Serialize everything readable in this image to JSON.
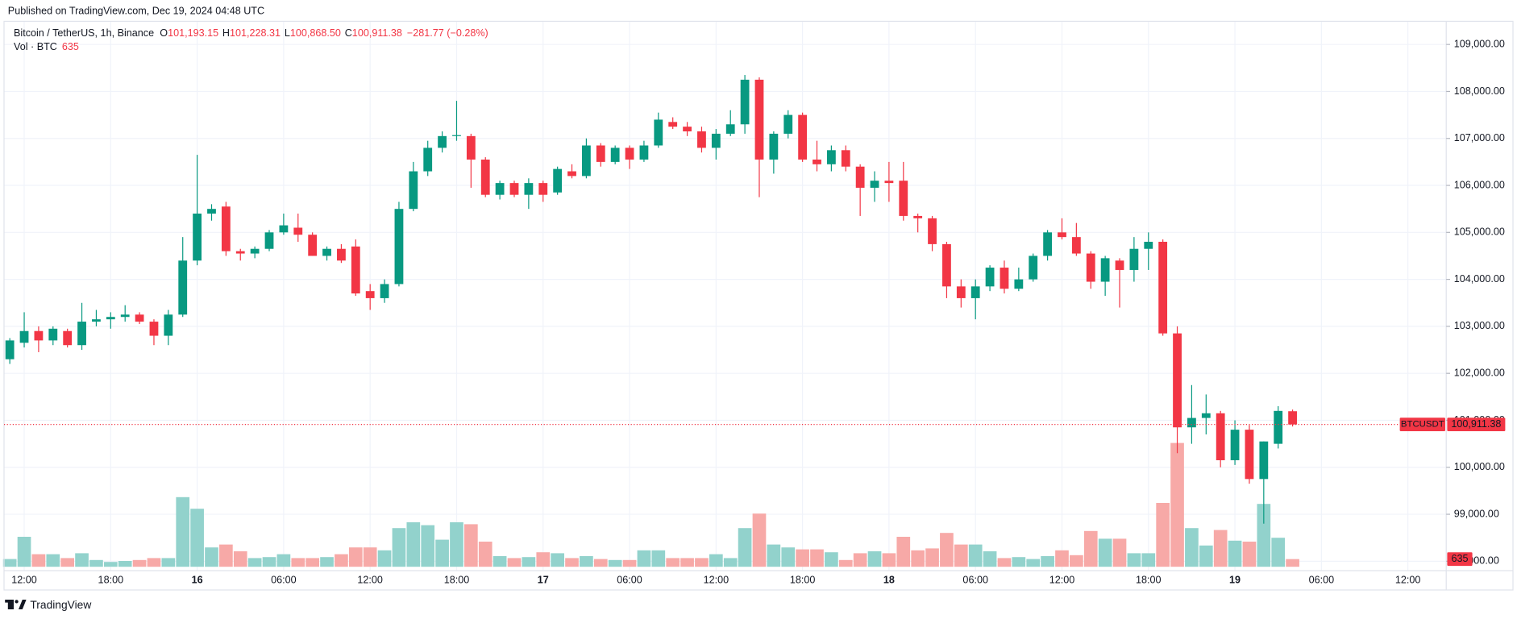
{
  "chart_data": {
    "type": "candlestick",
    "published": "Published on TradingView.com, Dec 19, 2024 04:48 UTC",
    "legend": {
      "symbol": "Bitcoin / TetherUS, 1h, Binance",
      "fields": [
        {
          "key": "O",
          "value": "101,193.15"
        },
        {
          "key": "H",
          "value": "101,228.31"
        },
        {
          "key": "L",
          "value": "100,868.50"
        },
        {
          "key": "C",
          "value": "100,911.38"
        }
      ],
      "change": "−281.77 (−0.28%)",
      "volume_name": "Vol · BTC"
    },
    "price_line": {
      "name": "BTCUSDT",
      "label": "100,911.38"
    },
    "footer": "TradingView",
    "up_color": "#089981",
    "down_color": "#f23645",
    "volume_up_color": "#92d2cc",
    "volume_down_color": "#f7a9a7",
    "grid": true,
    "xlim": [
      -0.4,
      99.66
    ],
    "xticks": [
      {
        "value": 1,
        "label": "12:00"
      },
      {
        "value": 7,
        "label": "18:00"
      },
      {
        "value": 13,
        "label": "16"
      },
      {
        "value": 19,
        "label": "06:00"
      },
      {
        "value": 25,
        "label": "12:00"
      },
      {
        "value": 31,
        "label": "18:00"
      },
      {
        "value": 37,
        "label": "17"
      },
      {
        "value": 43,
        "label": "06:00"
      },
      {
        "value": 49,
        "label": "12:00"
      },
      {
        "value": 55,
        "label": "18:00"
      },
      {
        "value": 61,
        "label": "18"
      },
      {
        "value": 67,
        "label": "06:00"
      },
      {
        "value": 73,
        "label": "12:00"
      },
      {
        "value": 79,
        "label": "18:00"
      },
      {
        "value": 85,
        "label": "19"
      },
      {
        "value": 91,
        "label": "06:00"
      },
      {
        "value": 97,
        "label": "12:00"
      }
    ],
    "ylim": [
      97800,
      109370
    ],
    "yticks": [
      {
        "value": 98000,
        "label": "98,000.00"
      },
      {
        "value": 99000,
        "label": "99,000.00"
      },
      {
        "value": 100000,
        "label": "100,000.00"
      },
      {
        "value": 101000,
        "label": "101,000.00"
      },
      {
        "value": 102000,
        "label": "102,000.00"
      },
      {
        "value": 103000,
        "label": "103,000.00"
      },
      {
        "value": 104000,
        "label": "104,000.00"
      },
      {
        "value": 105000,
        "label": "105,000.00"
      },
      {
        "value": 106000,
        "label": "106,000.00"
      },
      {
        "value": 107000,
        "label": "107,000.00"
      },
      {
        "value": 108000,
        "label": "108,000.00"
      },
      {
        "value": 109000,
        "label": "109,000.00"
      }
    ],
    "volume_ylim": [
      0,
      12000
    ],
    "candles": [
      {
        "open": 102300,
        "high": 102750,
        "low": 102200,
        "close": 102700
      },
      {
        "open": 102650,
        "high": 103300,
        "low": 102550,
        "close": 102900
      },
      {
        "open": 102900,
        "high": 103000,
        "low": 102450,
        "close": 102700
      },
      {
        "open": 102700,
        "high": 103000,
        "low": 102600,
        "close": 102950
      },
      {
        "open": 102900,
        "high": 102950,
        "low": 102550,
        "close": 102600
      },
      {
        "open": 102600,
        "high": 103500,
        "low": 102500,
        "close": 103100
      },
      {
        "open": 103100,
        "high": 103350,
        "low": 103000,
        "close": 103150
      },
      {
        "open": 103150,
        "high": 103300,
        "low": 102950,
        "close": 103200
      },
      {
        "open": 103200,
        "high": 103450,
        "low": 103100,
        "close": 103250
      },
      {
        "open": 103250,
        "high": 103300,
        "low": 103050,
        "close": 103100
      },
      {
        "open": 103100,
        "high": 103150,
        "low": 102600,
        "close": 102800
      },
      {
        "open": 102800,
        "high": 103350,
        "low": 102600,
        "close": 103250
      },
      {
        "open": 103250,
        "high": 104900,
        "low": 103200,
        "close": 104400
      },
      {
        "open": 104400,
        "high": 106650,
        "low": 104300,
        "close": 105400
      },
      {
        "open": 105400,
        "high": 105600,
        "low": 105250,
        "close": 105500
      },
      {
        "open": 105550,
        "high": 105650,
        "low": 104500,
        "close": 104600
      },
      {
        "open": 104600,
        "high": 104650,
        "low": 104400,
        "close": 104550
      },
      {
        "open": 104550,
        "high": 104700,
        "low": 104450,
        "close": 104650
      },
      {
        "open": 104650,
        "high": 105050,
        "low": 104600,
        "close": 105000
      },
      {
        "open": 105000,
        "high": 105400,
        "low": 104950,
        "close": 105150
      },
      {
        "open": 105100,
        "high": 105400,
        "low": 104800,
        "close": 104950
      },
      {
        "open": 104950,
        "high": 105000,
        "low": 104500,
        "close": 104500
      },
      {
        "open": 104500,
        "high": 104700,
        "low": 104400,
        "close": 104650
      },
      {
        "open": 104650,
        "high": 104750,
        "low": 104350,
        "close": 104400
      },
      {
        "open": 104700,
        "high": 104850,
        "low": 103650,
        "close": 103700
      },
      {
        "open": 103750,
        "high": 103900,
        "low": 103350,
        "close": 103600
      },
      {
        "open": 103600,
        "high": 104000,
        "low": 103500,
        "close": 103900
      },
      {
        "open": 103900,
        "high": 105650,
        "low": 103850,
        "close": 105500
      },
      {
        "open": 105500,
        "high": 106500,
        "low": 105450,
        "close": 106300
      },
      {
        "open": 106300,
        "high": 106950,
        "low": 106200,
        "close": 106800
      },
      {
        "open": 106800,
        "high": 107150,
        "low": 106700,
        "close": 107050
      },
      {
        "open": 107050,
        "high": 107800,
        "low": 106950,
        "close": 107070
      },
      {
        "open": 107050,
        "high": 107100,
        "low": 105950,
        "close": 106550
      },
      {
        "open": 106550,
        "high": 106600,
        "low": 105750,
        "close": 105800
      },
      {
        "open": 105800,
        "high": 106100,
        "low": 105700,
        "close": 106050
      },
      {
        "open": 106050,
        "high": 106100,
        "low": 105750,
        "close": 105800
      },
      {
        "open": 105800,
        "high": 106150,
        "low": 105500,
        "close": 106050
      },
      {
        "open": 106050,
        "high": 106100,
        "low": 105650,
        "close": 105800
      },
      {
        "open": 105850,
        "high": 106400,
        "low": 105800,
        "close": 106350
      },
      {
        "open": 106300,
        "high": 106450,
        "low": 106150,
        "close": 106200
      },
      {
        "open": 106200,
        "high": 107000,
        "low": 106150,
        "close": 106850
      },
      {
        "open": 106850,
        "high": 106900,
        "low": 106400,
        "close": 106500
      },
      {
        "open": 106500,
        "high": 106850,
        "low": 106450,
        "close": 106800
      },
      {
        "open": 106800,
        "high": 106850,
        "low": 106350,
        "close": 106550
      },
      {
        "open": 106550,
        "high": 106950,
        "low": 106500,
        "close": 106850
      },
      {
        "open": 106850,
        "high": 107550,
        "low": 106800,
        "close": 107400
      },
      {
        "open": 107350,
        "high": 107450,
        "low": 107200,
        "close": 107250
      },
      {
        "open": 107250,
        "high": 107350,
        "low": 107050,
        "close": 107150
      },
      {
        "open": 107150,
        "high": 107250,
        "low": 106700,
        "close": 106800
      },
      {
        "open": 106800,
        "high": 107200,
        "low": 106550,
        "close": 107100
      },
      {
        "open": 107100,
        "high": 107600,
        "low": 107050,
        "close": 107300
      },
      {
        "open": 107300,
        "high": 108350,
        "low": 107100,
        "close": 108250
      },
      {
        "open": 108250,
        "high": 108300,
        "low": 105750,
        "close": 106550
      },
      {
        "open": 106550,
        "high": 107150,
        "low": 106250,
        "close": 107100
      },
      {
        "open": 107100,
        "high": 107600,
        "low": 107000,
        "close": 107500
      },
      {
        "open": 107500,
        "high": 107550,
        "low": 106500,
        "close": 106550
      },
      {
        "open": 106550,
        "high": 106950,
        "low": 106300,
        "close": 106450
      },
      {
        "open": 106450,
        "high": 106850,
        "low": 106300,
        "close": 106750
      },
      {
        "open": 106750,
        "high": 106850,
        "low": 106300,
        "close": 106400
      },
      {
        "open": 106400,
        "high": 106450,
        "low": 105350,
        "close": 105950
      },
      {
        "open": 105950,
        "high": 106300,
        "low": 105650,
        "close": 106100
      },
      {
        "open": 106100,
        "high": 106500,
        "low": 105650,
        "close": 106050
      },
      {
        "open": 106100,
        "high": 106500,
        "low": 105250,
        "close": 105350
      },
      {
        "open": 105350,
        "high": 105400,
        "low": 105000,
        "close": 105300
      },
      {
        "open": 105300,
        "high": 105350,
        "low": 104600,
        "close": 104750
      },
      {
        "open": 104750,
        "high": 104800,
        "low": 103600,
        "close": 103850
      },
      {
        "open": 103850,
        "high": 104000,
        "low": 103400,
        "close": 103600
      },
      {
        "open": 103600,
        "high": 104000,
        "low": 103150,
        "close": 103850
      },
      {
        "open": 103850,
        "high": 104300,
        "low": 103750,
        "close": 104250
      },
      {
        "open": 104250,
        "high": 104400,
        "low": 103700,
        "close": 103800
      },
      {
        "open": 103800,
        "high": 104250,
        "low": 103750,
        "close": 104000
      },
      {
        "open": 104000,
        "high": 104550,
        "low": 103950,
        "close": 104500
      },
      {
        "open": 104500,
        "high": 105050,
        "low": 104400,
        "close": 105000
      },
      {
        "open": 105000,
        "high": 105300,
        "low": 104850,
        "close": 104900
      },
      {
        "open": 104900,
        "high": 105200,
        "low": 104500,
        "close": 104550
      },
      {
        "open": 104550,
        "high": 104600,
        "low": 103800,
        "close": 103950
      },
      {
        "open": 103950,
        "high": 104500,
        "low": 103650,
        "close": 104450
      },
      {
        "open": 104400,
        "high": 104450,
        "low": 103400,
        "close": 104200
      },
      {
        "open": 104200,
        "high": 104900,
        "low": 103950,
        "close": 104650
      },
      {
        "open": 104650,
        "high": 105000,
        "low": 104200,
        "close": 104800
      },
      {
        "open": 104800,
        "high": 104850,
        "low": 102800,
        "close": 102850
      },
      {
        "open": 102850,
        "high": 103000,
        "low": 100300,
        "close": 100850
      },
      {
        "open": 100850,
        "high": 101750,
        "low": 100500,
        "close": 101050
      },
      {
        "open": 101050,
        "high": 101550,
        "low": 100700,
        "close": 101150
      },
      {
        "open": 101150,
        "high": 101200,
        "low": 100000,
        "close": 100150
      },
      {
        "open": 100150,
        "high": 101000,
        "low": 100050,
        "close": 100800
      },
      {
        "open": 100800,
        "high": 100900,
        "low": 99650,
        "close": 99750
      },
      {
        "open": 99750,
        "high": 100550,
        "low": 98800,
        "close": 100550
      },
      {
        "open": 100500,
        "high": 101300,
        "low": 100400,
        "close": 101200
      },
      {
        "open": 101193.15,
        "high": 101228.31,
        "low": 100868.5,
        "close": 100911.38
      }
    ],
    "volume": [
      640,
      2480,
      1040,
      1040,
      720,
      1120,
      560,
      400,
      480,
      560,
      720,
      720,
      5760,
      4800,
      1600,
      1840,
      1280,
      720,
      800,
      1040,
      720,
      720,
      800,
      1040,
      1600,
      1600,
      1360,
      3200,
      3680,
      3440,
      2240,
      3680,
      3520,
      2080,
      880,
      720,
      800,
      1200,
      1120,
      720,
      880,
      640,
      560,
      560,
      1360,
      1360,
      720,
      720,
      720,
      1040,
      720,
      3200,
      4400,
      1840,
      1600,
      1440,
      1440,
      1200,
      560,
      1120,
      1280,
      1120,
      2480,
      1360,
      1520,
      2800,
      1840,
      1840,
      1280,
      720,
      800,
      640,
      880,
      1360,
      960,
      2960,
      2320,
      2320,
      1120,
      1120,
      5280,
      10240,
      3200,
      1760,
      3040,
      2160,
      2080,
      5200,
      2400,
      635
    ]
  }
}
